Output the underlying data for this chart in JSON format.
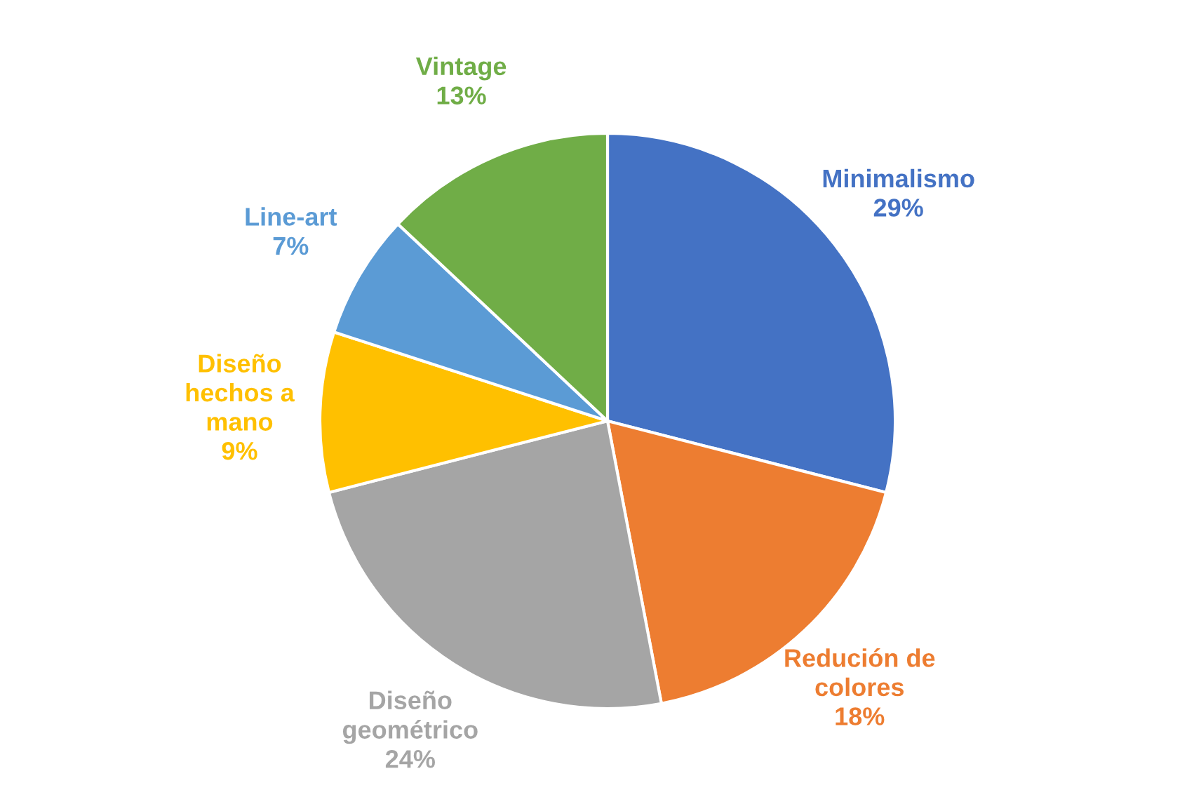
{
  "chart_data": {
    "type": "pie",
    "categories": [
      "Minimalismo",
      "Redución de\ncolores",
      "Diseño\ngeométrico",
      "Diseño\nhechos a\nmano",
      "Line-art",
      "Vintage"
    ],
    "values": [
      29,
      18,
      24,
      9,
      7,
      13
    ],
    "value_labels": [
      "29%",
      "18%",
      "24%",
      "9%",
      "7%",
      "13%"
    ],
    "colors": [
      "#4472c4",
      "#ed7d31",
      "#a5a5a5",
      "#ffc000",
      "#5b9bd5",
      "#70ad47"
    ],
    "legend": false
  }
}
